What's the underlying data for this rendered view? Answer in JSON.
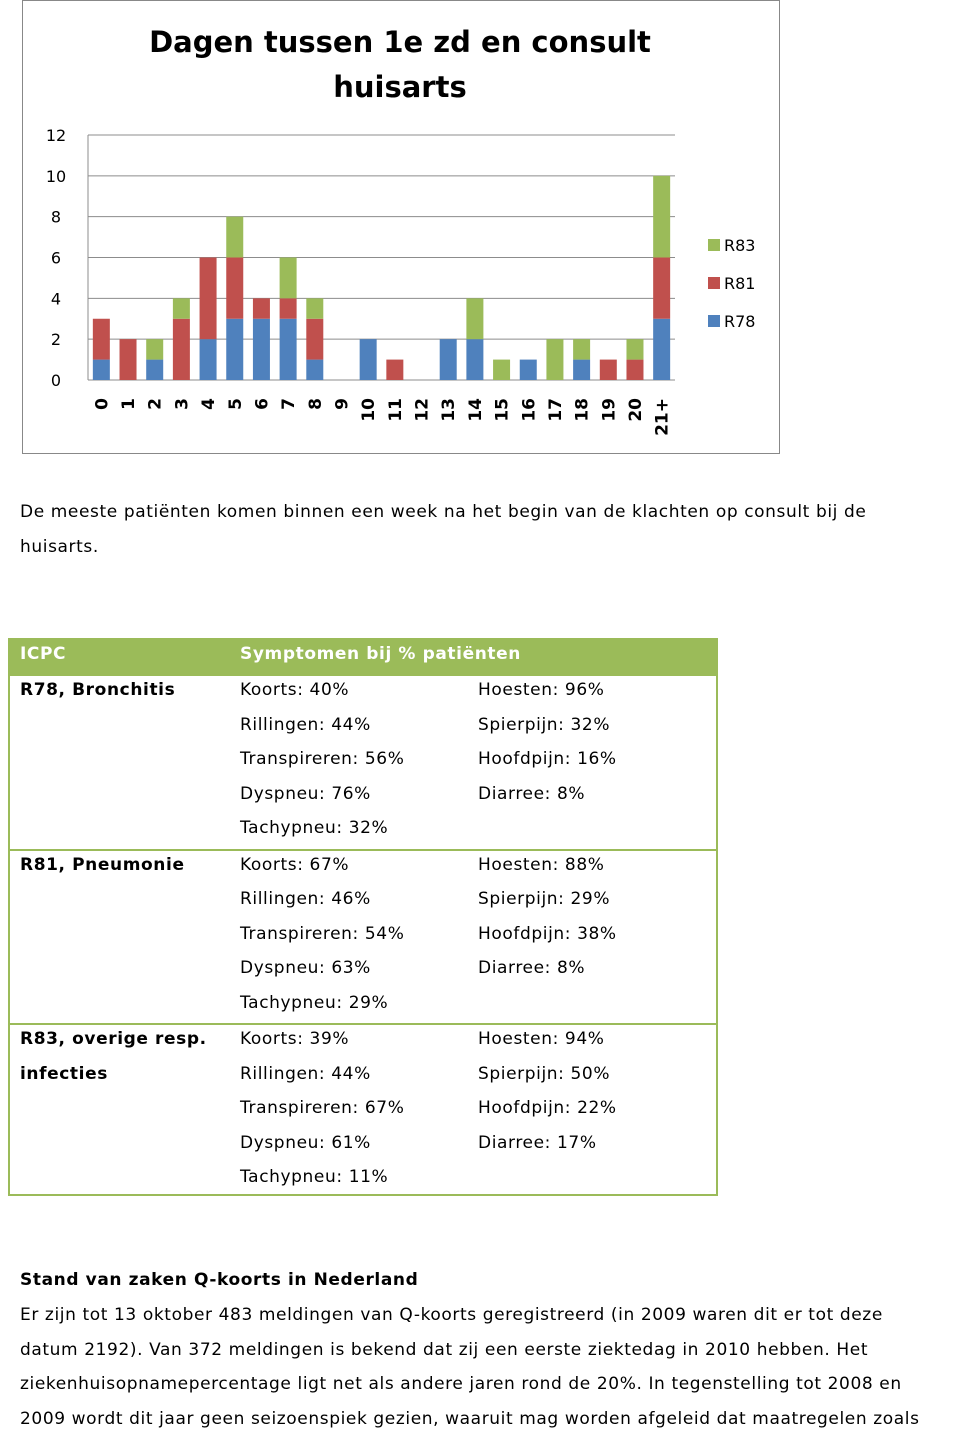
{
  "chart_data": {
    "type": "bar",
    "stacked": true,
    "title": [
      "Dagen tussen 1e zd en consult",
      "huisarts"
    ],
    "categories": [
      "0",
      "1",
      "2",
      "3",
      "4",
      "5",
      "6",
      "7",
      "8",
      "9",
      "10",
      "11",
      "12",
      "13",
      "14",
      "15",
      "16",
      "17",
      "18",
      "19",
      "20",
      "21+"
    ],
    "series": [
      {
        "name": "R78",
        "color": "#4f81bd",
        "values": [
          1,
          0,
          1,
          0,
          2,
          3,
          3,
          3,
          1,
          0,
          2,
          0,
          0,
          2,
          2,
          0,
          1,
          0,
          1,
          0,
          0,
          3
        ]
      },
      {
        "name": "R81",
        "color": "#c0504d",
        "values": [
          2,
          2,
          0,
          3,
          4,
          3,
          1,
          1,
          2,
          0,
          0,
          1,
          0,
          0,
          0,
          0,
          0,
          0,
          0,
          1,
          1,
          3
        ]
      },
      {
        "name": "R83",
        "color": "#9bbb59",
        "values": [
          0,
          0,
          1,
          1,
          0,
          2,
          0,
          2,
          1,
          0,
          0,
          0,
          0,
          0,
          2,
          1,
          0,
          2,
          1,
          0,
          1,
          4
        ]
      }
    ],
    "ylim": [
      0,
      12
    ],
    "yticks": [
      0,
      2,
      4,
      6,
      8,
      10,
      12
    ],
    "grid": true
  },
  "caption": [
    "De meeste patiënten komen binnen een week na het begin van de klachten op consult bij de",
    "huisarts."
  ],
  "table": {
    "header": [
      "ICPC",
      "Symptomen bij % patiënten"
    ],
    "rows": [
      {
        "icpc": [
          "R78, Bronchitis"
        ],
        "col1": [
          "Koorts: 40%",
          "Rillingen: 44%",
          "Transpireren: 56%",
          "Dyspneu: 76%",
          "Tachypneu: 32%"
        ],
        "col2": [
          "Hoesten: 96%",
          "Spierpijn: 32%",
          "Hoofdpijn: 16%",
          "Diarree: 8%"
        ]
      },
      {
        "icpc": [
          "R81, Pneumonie"
        ],
        "col1": [
          "Koorts: 67%",
          "Rillingen: 46%",
          "Transpireren: 54%",
          "Dyspneu: 63%",
          "Tachypneu: 29%"
        ],
        "col2": [
          "Hoesten: 88%",
          "Spierpijn: 29%",
          "Hoofdpijn: 38%",
          "Diarree: 8%"
        ]
      },
      {
        "icpc": [
          "R83, overige resp.",
          "infecties"
        ],
        "col1": [
          "Koorts: 39%",
          "Rillingen: 44%",
          "Transpireren: 67%",
          "Dyspneu: 61%",
          "Tachypneu: 11%"
        ],
        "col2": [
          "Hoesten: 94%",
          "Spierpijn: 50%",
          "Hoofdpijn: 22%",
          "Diarree: 17%"
        ]
      }
    ]
  },
  "section": {
    "heading": "Stand van zaken Q-koorts in Nederland",
    "lines": [
      "Er zijn tot 13 oktober 483 meldingen van Q-koorts geregistreerd (in 2009 waren dit er tot deze",
      "datum 2192). Van 372 meldingen is bekend dat zij een eerste ziektedag in 2010 hebben. Het",
      "ziekenhuisopnamepercentage ligt net als andere jaren rond de 20%. In tegenstelling tot 2008 en",
      "2009 wordt dit jaar geen seizoenspiek gezien, waaruit mag worden afgeleid dat maatregelen zoals"
    ]
  }
}
